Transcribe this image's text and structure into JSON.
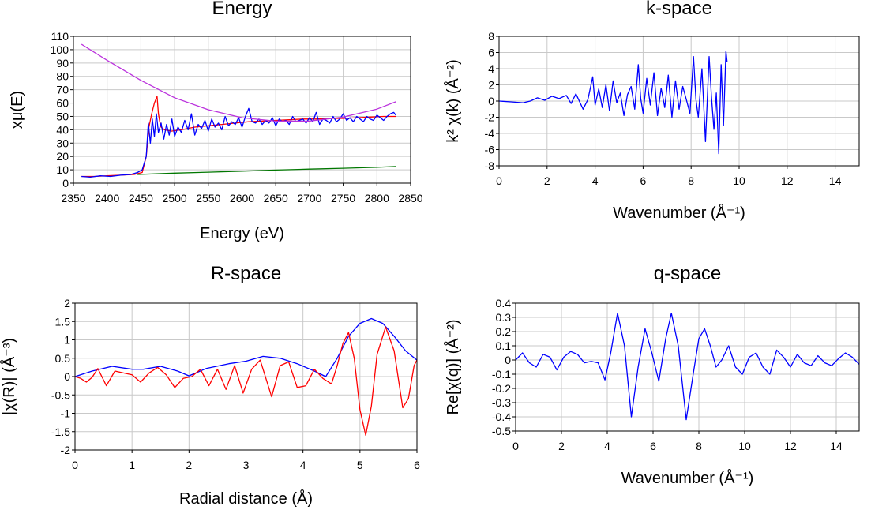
{
  "panels": [
    {
      "id": "energy",
      "title": "Energy",
      "xlabel": "Energy    (eV)",
      "ylabel": "xμ(E)",
      "chart_data": {
        "type": "line",
        "title": "Energy",
        "xlabel": "Energy    (eV)",
        "ylabel": "xμ(E)",
        "xlim": [
          2350,
          2850
        ],
        "ylim": [
          0,
          110
        ],
        "xticks": [
          2350,
          2400,
          2450,
          2500,
          2550,
          2600,
          2650,
          2700,
          2750,
          2800,
          2850
        ],
        "yticks": [
          0,
          10,
          20,
          30,
          40,
          50,
          60,
          70,
          80,
          90,
          100,
          110
        ],
        "grid": true,
        "series": [
          {
            "color": "#ff0000",
            "x": [
              2362,
              2380,
              2400,
              2420,
              2440,
              2452,
              2458,
              2462,
              2466,
              2470,
              2474,
              2476,
              2478,
              2480,
              2485,
              2495,
              2510,
              2530,
              2550,
              2570,
              2590,
              2610,
              2630,
              2650,
              2670,
              2690,
              2710,
              2730,
              2750,
              2770,
              2790,
              2810,
              2828
            ],
            "y": [
              5,
              5,
              5.5,
              6,
              6.5,
              8,
              20,
              42,
              52,
              60,
              65,
              52,
              46,
              42,
              40,
              39,
              40,
              42,
              43,
              44,
              45,
              46,
              46.5,
              47,
              47.5,
              48,
              48,
              48.5,
              48.5,
              49,
              49.5,
              50,
              50
            ]
          },
          {
            "color": "#0000ff",
            "x": [
              2362,
              2375,
              2390,
              2405,
              2420,
              2435,
              2445,
              2452,
              2458,
              2461,
              2464,
              2467,
              2470,
              2473,
              2476,
              2480,
              2484,
              2488,
              2492,
              2496,
              2500,
              2505,
              2510,
              2515,
              2520,
              2525,
              2530,
              2535,
              2540,
              2545,
              2550,
              2555,
              2560,
              2565,
              2570,
              2575,
              2580,
              2585,
              2590,
              2595,
              2600,
              2605,
              2610,
              2615,
              2620,
              2625,
              2630,
              2635,
              2640,
              2645,
              2650,
              2655,
              2660,
              2665,
              2670,
              2675,
              2680,
              2685,
              2690,
              2695,
              2700,
              2705,
              2710,
              2715,
              2720,
              2725,
              2730,
              2735,
              2740,
              2745,
              2750,
              2755,
              2760,
              2765,
              2770,
              2775,
              2780,
              2785,
              2790,
              2795,
              2800,
              2805,
              2810,
              2815,
              2820,
              2825,
              2828
            ],
            "y": [
              5,
              4.5,
              5.5,
              5,
              6,
              6.5,
              8,
              10,
              20,
              45,
              30,
              48,
              35,
              52,
              38,
              45,
              33,
              44,
              36,
              48,
              35,
              42,
              38,
              47,
              40,
              52,
              36,
              44,
              41,
              47,
              39,
              48,
              42,
              45,
              40,
              50,
              43,
              46,
              44,
              49,
              42,
              50,
              56,
              46,
              45,
              48,
              44,
              47,
              45,
              49,
              43,
              48,
              46,
              47,
              44,
              50,
              46,
              47,
              48,
              45,
              49,
              46,
              53,
              44,
              48,
              47,
              45,
              50,
              46,
              48,
              52,
              47,
              49,
              46,
              50,
              48,
              46,
              50,
              48,
              47,
              51,
              49,
              47,
              50,
              52,
              53,
              51
            ]
          },
          {
            "color": "#bb33dd",
            "x": [
              2362,
              2400,
              2450,
              2500,
              2550,
              2600,
              2650,
              2700,
              2750,
              2800,
              2828
            ],
            "y": [
              104,
              92,
              77,
              64,
              55,
              49,
              46.5,
              46.5,
              49.5,
              55.5,
              61
            ]
          },
          {
            "color": "#007700",
            "x": [
              2445,
              2500,
              2550,
              2600,
              2650,
              2700,
              2750,
              2800,
              2828
            ],
            "y": [
              6.5,
              7.5,
              8.2,
              9,
              9.8,
              10.5,
              11.2,
              11.9,
              12.5
            ]
          }
        ]
      }
    },
    {
      "id": "kspace",
      "title": "k-space",
      "xlabel": "Wavenumber    (Å⁻¹)",
      "ylabel": "k² χ(k)    (Å⁻²)",
      "chart_data": {
        "type": "line",
        "title": "k-space",
        "xlabel": "Wavenumber    (Å⁻¹)",
        "ylabel": "k² χ(k)    (Å⁻²)",
        "xlim": [
          0,
          15
        ],
        "ylim": [
          -8,
          8
        ],
        "xticks": [
          0,
          2,
          4,
          6,
          8,
          10,
          12,
          14
        ],
        "yticks": [
          -8,
          -6,
          -4,
          -2,
          0,
          2,
          4,
          6,
          8
        ],
        "grid": true,
        "series": [
          {
            "color": "#0000ff",
            "x": [
              0,
              0.5,
              1.0,
              1.3,
              1.6,
              1.9,
              2.2,
              2.5,
              2.8,
              3.0,
              3.2,
              3.5,
              3.7,
              3.9,
              4.0,
              4.15,
              4.3,
              4.45,
              4.6,
              4.75,
              4.9,
              5.05,
              5.2,
              5.35,
              5.5,
              5.65,
              5.8,
              5.9,
              6.0,
              6.15,
              6.3,
              6.45,
              6.6,
              6.75,
              6.9,
              7.05,
              7.2,
              7.35,
              7.5,
              7.65,
              7.8,
              7.95,
              8.1,
              8.2,
              8.3,
              8.45,
              8.6,
              8.75,
              8.85,
              8.95,
              9.05,
              9.15,
              9.25,
              9.35,
              9.45,
              9.5
            ],
            "y": [
              0,
              -0.1,
              -0.2,
              0,
              0.4,
              0.1,
              0.6,
              0.3,
              0.7,
              -0.3,
              0.9,
              -1.0,
              0.2,
              3.0,
              -0.5,
              1.5,
              -0.8,
              2.0,
              -1.2,
              2.5,
              -0.2,
              1.0,
              -1.8,
              0.8,
              1.8,
              -1.0,
              4.5,
              0.3,
              -1.5,
              2.8,
              -0.5,
              3.5,
              -1.8,
              1.6,
              -0.8,
              3.2,
              -2.0,
              2.5,
              -1.0,
              1.8,
              0.2,
              -1.5,
              5.5,
              0.2,
              -2.0,
              4.0,
              -5.0,
              5.5,
              0.5,
              -3.5,
              1.0,
              -6.5,
              4.5,
              -3.0,
              6.2,
              4.8
            ]
          }
        ]
      }
    },
    {
      "id": "rspace",
      "title": "R-space",
      "xlabel": "Radial distance    (Å)",
      "ylabel": "|χ(R)|    (Å⁻³)",
      "chart_data": {
        "type": "line",
        "title": "R-space",
        "xlabel": "Radial distance    (Å)",
        "ylabel": "|χ(R)|    (Å⁻³)",
        "xlim": [
          0,
          6
        ],
        "ylim": [
          -2,
          2
        ],
        "xticks": [
          0,
          1,
          2,
          3,
          4,
          5,
          6
        ],
        "yticks": [
          -2,
          -1.5,
          -1,
          -0.5,
          0,
          0.5,
          1,
          1.5,
          2
        ],
        "grid": true,
        "series": [
          {
            "color": "#0000ff",
            "x": [
              0,
              0.3,
              0.65,
              1.0,
              1.2,
              1.5,
              1.8,
              2.0,
              2.3,
              2.7,
              3.0,
              3.3,
              3.6,
              3.9,
              4.2,
              4.4,
              4.6,
              4.8,
              5.0,
              5.2,
              5.4,
              5.6,
              5.8,
              6.0
            ],
            "y": [
              0,
              0.15,
              0.28,
              0.2,
              0.2,
              0.28,
              0.15,
              0.02,
              0.22,
              0.35,
              0.42,
              0.55,
              0.5,
              0.35,
              0.15,
              0.0,
              0.5,
              1.1,
              1.45,
              1.58,
              1.45,
              1.1,
              0.7,
              0.45
            ]
          },
          {
            "color": "#ff0000",
            "x": [
              0,
              0.1,
              0.2,
              0.3,
              0.4,
              0.55,
              0.7,
              0.85,
              1.0,
              1.15,
              1.3,
              1.45,
              1.6,
              1.75,
              1.9,
              2.05,
              2.2,
              2.35,
              2.5,
              2.65,
              2.8,
              2.95,
              3.1,
              3.25,
              3.45,
              3.6,
              3.75,
              3.9,
              4.05,
              4.2,
              4.35,
              4.5,
              4.6,
              4.7,
              4.8,
              4.9,
              5.0,
              5.1,
              5.2,
              5.3,
              5.45,
              5.6,
              5.75,
              5.85,
              5.95,
              6.0
            ],
            "y": [
              0,
              -0.05,
              -0.15,
              -0.02,
              0.22,
              -0.25,
              0.15,
              0.1,
              0.05,
              -0.15,
              0.1,
              0.25,
              0.05,
              -0.3,
              -0.05,
              0.0,
              0.2,
              -0.25,
              0.2,
              -0.35,
              0.3,
              -0.45,
              0.2,
              0.45,
              -0.55,
              0.3,
              0.4,
              -0.3,
              -0.25,
              0.2,
              -0.05,
              -0.2,
              0.3,
              0.9,
              1.2,
              0.5,
              -0.9,
              -1.6,
              -0.8,
              0.6,
              1.35,
              0.7,
              -0.85,
              -0.6,
              0.3,
              0.45
            ]
          }
        ]
      }
    },
    {
      "id": "qspace",
      "title": "q-space",
      "xlabel": "Wavenumber    (Å⁻¹)",
      "ylabel": "Re[χ(q)]    (Å⁻²)",
      "chart_data": {
        "type": "line",
        "title": "q-space",
        "xlabel": "Wavenumber    (Å⁻¹)",
        "ylabel": "Re[χ(q)]    (Å⁻²)",
        "xlim": [
          0,
          15
        ],
        "ylim": [
          -0.5,
          0.4
        ],
        "xticks": [
          0,
          2,
          4,
          6,
          8,
          10,
          12,
          14
        ],
        "yticks": [
          -0.5,
          -0.4,
          -0.3,
          -0.2,
          -0.1,
          0,
          0.1,
          0.2,
          0.3,
          0.4
        ],
        "grid": true,
        "series": [
          {
            "color": "#0000ff",
            "x": [
              0,
              0.3,
              0.6,
              0.9,
              1.2,
              1.5,
              1.8,
              2.1,
              2.4,
              2.7,
              3.0,
              3.3,
              3.6,
              3.9,
              4.15,
              4.45,
              4.75,
              5.05,
              5.35,
              5.65,
              5.95,
              6.25,
              6.55,
              6.8,
              7.1,
              7.45,
              7.75,
              8.0,
              8.25,
              8.5,
              8.75,
              9.0,
              9.3,
              9.6,
              9.9,
              10.2,
              10.5,
              10.8,
              11.1,
              11.4,
              11.7,
              12.0,
              12.3,
              12.6,
              12.9,
              13.2,
              13.5,
              13.8,
              14.1,
              14.4,
              14.7,
              15.0
            ],
            "y": [
              0,
              0.05,
              -0.02,
              -0.05,
              0.04,
              0.02,
              -0.07,
              0.02,
              0.06,
              0.04,
              -0.02,
              -0.01,
              -0.02,
              -0.14,
              0.05,
              0.33,
              0.1,
              -0.4,
              -0.05,
              0.22,
              0.05,
              -0.15,
              0.15,
              0.33,
              0.1,
              -0.42,
              -0.1,
              0.15,
              0.22,
              0.1,
              -0.05,
              0.0,
              0.1,
              -0.05,
              -0.1,
              0.02,
              0.05,
              -0.05,
              -0.1,
              0.07,
              0.02,
              -0.05,
              0.04,
              -0.02,
              -0.04,
              0.03,
              -0.02,
              -0.04,
              0.01,
              0.05,
              0.02,
              -0.03
            ]
          }
        ]
      }
    }
  ]
}
